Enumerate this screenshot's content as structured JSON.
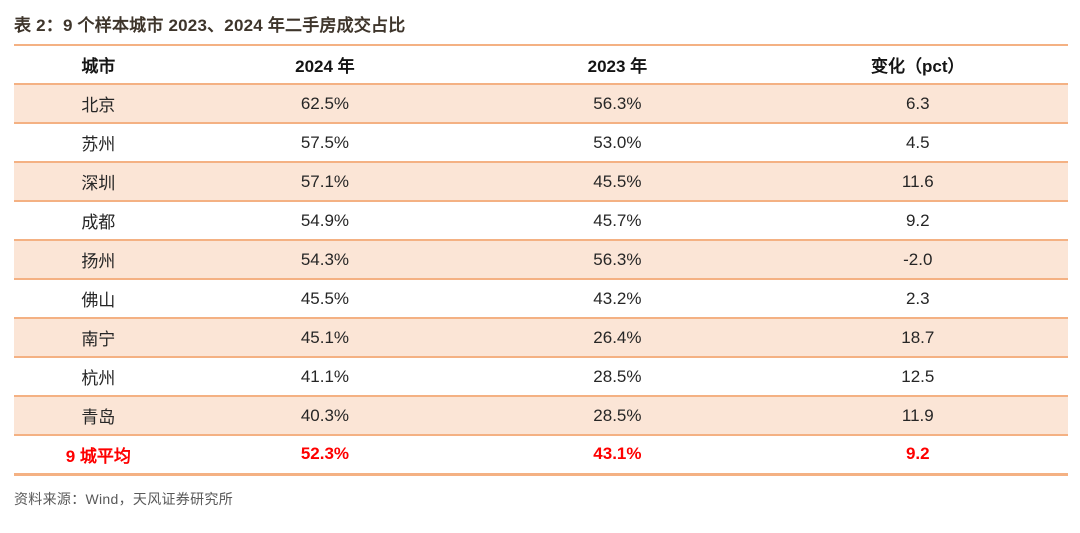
{
  "title": "表 2：9 个样本城市 2023、2024 年二手房成交占比",
  "table": {
    "headers": [
      "城市",
      "2024 年",
      "2023 年",
      "变化（pct）"
    ],
    "rows": [
      {
        "city": "北京",
        "y2024": "62.5%",
        "y2023": "56.3%",
        "change": "6.3"
      },
      {
        "city": "苏州",
        "y2024": "57.5%",
        "y2023": "53.0%",
        "change": "4.5"
      },
      {
        "city": "深圳",
        "y2024": "57.1%",
        "y2023": "45.5%",
        "change": "11.6"
      },
      {
        "city": "成都",
        "y2024": "54.9%",
        "y2023": "45.7%",
        "change": "9.2"
      },
      {
        "city": "扬州",
        "y2024": "54.3%",
        "y2023": "56.3%",
        "change": "-2.0"
      },
      {
        "city": "佛山",
        "y2024": "45.5%",
        "y2023": "43.2%",
        "change": "2.3"
      },
      {
        "city": "南宁",
        "y2024": "45.1%",
        "y2023": "26.4%",
        "change": "18.7"
      },
      {
        "city": "杭州",
        "y2024": "41.1%",
        "y2023": "28.5%",
        "change": "12.5"
      },
      {
        "city": "青岛",
        "y2024": "40.3%",
        "y2023": "28.5%",
        "change": "11.9"
      }
    ],
    "summary": {
      "city": "9 城平均",
      "y2024": "52.3%",
      "y2023": "43.1%",
      "change": "9.2"
    }
  },
  "source": "资料来源：Wind，天风证券研究所",
  "colors": {
    "line": "#f4b183",
    "stripe": "#fbe5d6",
    "summary_text": "#fe0000",
    "title_text": "#3e352b",
    "source_text": "#595959"
  },
  "chart_data": {
    "type": "table",
    "title": "表 2：9 个样本城市 2023、2024 年二手房成交占比",
    "columns": [
      "城市",
      "2024 年",
      "2023 年",
      "变化（pct）"
    ],
    "categories": [
      "北京",
      "苏州",
      "深圳",
      "成都",
      "扬州",
      "佛山",
      "南宁",
      "杭州",
      "青岛"
    ],
    "series": [
      {
        "name": "2024 年",
        "unit": "%",
        "values": [
          62.5,
          57.5,
          57.1,
          54.9,
          54.3,
          45.5,
          45.1,
          41.1,
          40.3
        ]
      },
      {
        "name": "2023 年",
        "unit": "%",
        "values": [
          56.3,
          53.0,
          45.5,
          45.7,
          56.3,
          43.2,
          26.4,
          28.5,
          28.5
        ]
      },
      {
        "name": "变化（pct）",
        "unit": "pct",
        "values": [
          6.3,
          4.5,
          11.6,
          9.2,
          -2.0,
          2.3,
          18.7,
          12.5,
          11.9
        ]
      }
    ],
    "summary_row": {
      "label": "9 城平均",
      "values": [
        52.3,
        43.1,
        9.2
      ]
    },
    "source": "资料来源：Wind，天风证券研究所"
  }
}
